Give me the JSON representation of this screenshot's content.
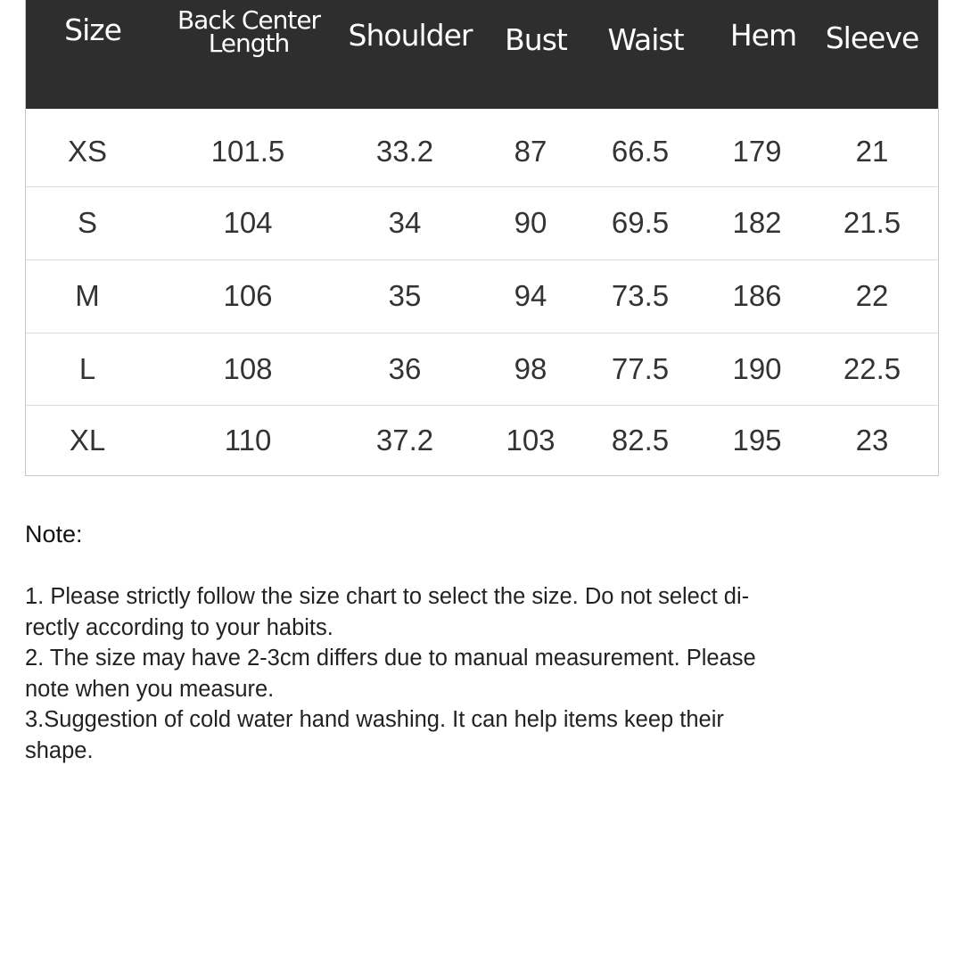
{
  "table": {
    "headers": [
      "Size",
      "Back Center\nLength",
      "Shoulder",
      "Bust",
      "Waist",
      "Hem",
      "Sleeve"
    ],
    "header_lines": {
      "back_center_1": "Back Center",
      "back_center_2": "Length"
    },
    "rows": [
      [
        "XS",
        "101.5",
        "33.2",
        "87",
        "66.5",
        "179",
        "21"
      ],
      [
        "S",
        "104",
        "34",
        "90",
        "69.5",
        "182",
        "21.5"
      ],
      [
        "M",
        "106",
        "35",
        "94",
        "73.5",
        "186",
        "22"
      ],
      [
        "L",
        "108",
        "36",
        "98",
        "77.5",
        "190",
        "22.5"
      ],
      [
        "XL",
        "110",
        "37.2",
        "103",
        "82.5",
        "195",
        "23"
      ]
    ],
    "header_color": "#2e2e2e"
  },
  "note": {
    "title": "Note:",
    "lines": [
      "1. Please strictly follow the size chart  to select the size. Do not select di-",
      "rectly according to your habits.",
      "2. The size may have 2-3cm differs due to manual measurement. Please",
      "note when you measure.",
      "3.Suggestion of cold water hand washing. It can help items keep their",
      "shape."
    ]
  }
}
